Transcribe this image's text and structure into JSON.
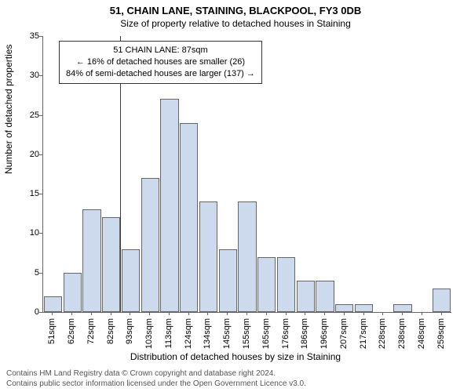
{
  "title": "51, CHAIN LANE, STAINING, BLACKPOOL, FY3 0DB",
  "subtitle": "Size of property relative to detached houses in Staining",
  "ylabel": "Number of detached properties",
  "xlabel": "Distribution of detached houses by size in Staining",
  "footer_line1": "Contains HM Land Registry data © Crown copyright and database right 2024.",
  "footer_line2": "Contains public sector information licensed under the Open Government Licence v3.0.",
  "chart": {
    "type": "histogram",
    "bar_fill": "#cdd9ed",
    "bar_stroke": "#666666",
    "background": "#ffffff",
    "marker_color": "#cc0000",
    "marker_x_value": 87,
    "ylim": [
      0,
      35
    ],
    "ytick_step": 5,
    "categories": [
      "51sqm",
      "62sqm",
      "72sqm",
      "82sqm",
      "93sqm",
      "103sqm",
      "113sqm",
      "124sqm",
      "134sqm",
      "145sqm",
      "155sqm",
      "165sqm",
      "176sqm",
      "186sqm",
      "196sqm",
      "207sqm",
      "217sqm",
      "228sqm",
      "238sqm",
      "248sqm",
      "259sqm"
    ],
    "x_numeric": [
      51,
      62,
      72,
      82,
      93,
      103,
      113,
      124,
      134,
      145,
      155,
      165,
      176,
      186,
      196,
      207,
      217,
      228,
      238,
      248,
      259
    ],
    "values": [
      2,
      5,
      13,
      12,
      8,
      17,
      27,
      24,
      14,
      8,
      14,
      7,
      7,
      4,
      4,
      1,
      1,
      0,
      1,
      0,
      3
    ],
    "bar_width_ratio": 0.94,
    "annot": {
      "line1": "51 CHAIN LANE: 87sqm",
      "line2": "← 16% of detached houses are smaller (26)",
      "line3": "84% of semi-detached houses are larger (137) →"
    }
  }
}
